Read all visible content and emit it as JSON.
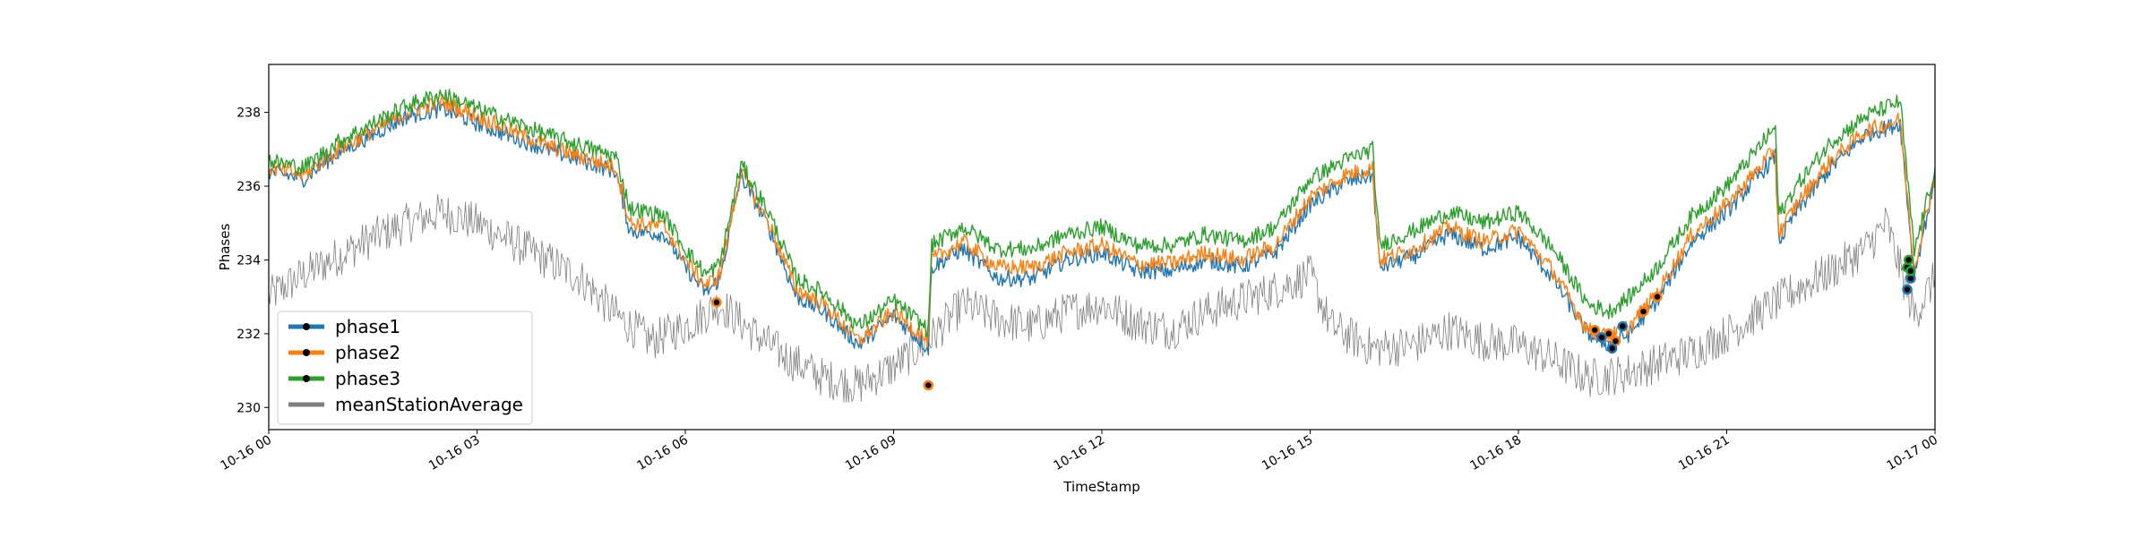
{
  "chart_data": {
    "type": "line",
    "title": "",
    "xlabel": "TimeStamp",
    "ylabel": "Phases",
    "x_range": [
      "10-16 00",
      "10-17 00"
    ],
    "ylim": [
      229.4,
      239.3
    ],
    "grid": false,
    "legend_position": "lower-left",
    "x_ticks": [
      "10-16 00",
      "10-16 03",
      "10-16 06",
      "10-16 09",
      "10-16 12",
      "10-16 15",
      "10-16 18",
      "10-16 21",
      "10-17 00"
    ],
    "y_ticks": [
      230,
      232,
      234,
      236,
      238
    ],
    "series": [
      {
        "name": "phase1",
        "color": "#1f77b4",
        "points": [
          [
            0,
            236.4
          ],
          [
            0.5,
            236.2
          ],
          [
            1,
            236.9
          ],
          [
            1.5,
            237.4
          ],
          [
            2,
            237.9
          ],
          [
            2.5,
            238.1
          ],
          [
            3,
            237.7
          ],
          [
            4,
            237.0
          ],
          [
            5,
            236.4
          ],
          [
            5.2,
            234.8
          ],
          [
            5.7,
            234.7
          ],
          [
            6,
            233.8
          ],
          [
            6.3,
            233.1
          ],
          [
            6.5,
            233.5
          ],
          [
            6.8,
            236.3
          ],
          [
            7.2,
            234.9
          ],
          [
            7.6,
            233.0
          ],
          [
            8,
            232.6
          ],
          [
            8.5,
            231.7
          ],
          [
            9,
            232.5
          ],
          [
            9.5,
            231.6
          ],
          [
            9.55,
            233.8
          ],
          [
            10,
            234.3
          ],
          [
            10.5,
            233.5
          ],
          [
            11,
            233.5
          ],
          [
            11.5,
            234.0
          ],
          [
            12,
            234.2
          ],
          [
            12.5,
            233.7
          ],
          [
            13,
            233.7
          ],
          [
            13.5,
            234.0
          ],
          [
            14,
            233.8
          ],
          [
            14.5,
            234.2
          ],
          [
            15,
            235.5
          ],
          [
            15.5,
            236.1
          ],
          [
            15.9,
            236.3
          ],
          [
            16,
            233.8
          ],
          [
            16.5,
            234.1
          ],
          [
            17,
            234.7
          ],
          [
            17.5,
            234.3
          ],
          [
            18,
            234.6
          ],
          [
            18.5,
            233.5
          ],
          [
            19,
            232.0
          ],
          [
            19.3,
            231.7
          ],
          [
            19.6,
            232.0
          ],
          [
            20,
            232.9
          ],
          [
            20.5,
            234.5
          ],
          [
            21,
            235.3
          ],
          [
            21.7,
            236.8
          ],
          [
            21.75,
            234.5
          ],
          [
            22,
            235.3
          ],
          [
            22.5,
            236.5
          ],
          [
            23,
            237.4
          ],
          [
            23.5,
            237.7
          ],
          [
            23.7,
            233.6
          ],
          [
            24,
            236.2
          ]
        ]
      },
      {
        "name": "phase2",
        "color": "#ff7f0e",
        "points": [
          [
            0,
            236.5
          ],
          [
            0.5,
            236.3
          ],
          [
            1,
            237.0
          ],
          [
            1.5,
            237.5
          ],
          [
            2,
            238.0
          ],
          [
            2.5,
            238.3
          ],
          [
            3,
            237.9
          ],
          [
            4,
            237.1
          ],
          [
            5,
            236.5
          ],
          [
            5.2,
            235.0
          ],
          [
            5.7,
            234.9
          ],
          [
            6,
            234.0
          ],
          [
            6.3,
            233.3
          ],
          [
            6.5,
            233.6
          ],
          [
            6.8,
            236.4
          ],
          [
            7.2,
            235.0
          ],
          [
            7.6,
            233.2
          ],
          [
            8,
            232.8
          ],
          [
            8.5,
            231.8
          ],
          [
            9,
            232.6
          ],
          [
            9.5,
            231.8
          ],
          [
            9.55,
            234.0
          ],
          [
            10,
            234.5
          ],
          [
            10.5,
            233.8
          ],
          [
            11,
            233.8
          ],
          [
            11.5,
            234.2
          ],
          [
            12,
            234.4
          ],
          [
            12.5,
            233.9
          ],
          [
            13,
            233.9
          ],
          [
            13.5,
            234.2
          ],
          [
            14,
            234.0
          ],
          [
            14.5,
            234.4
          ],
          [
            15,
            235.7
          ],
          [
            15.5,
            236.3
          ],
          [
            15.9,
            236.5
          ],
          [
            16,
            234.0
          ],
          [
            16.5,
            234.3
          ],
          [
            17,
            234.9
          ],
          [
            17.5,
            234.5
          ],
          [
            18,
            234.8
          ],
          [
            18.5,
            233.7
          ],
          [
            19,
            232.1
          ],
          [
            19.3,
            231.9
          ],
          [
            19.6,
            232.2
          ],
          [
            20,
            233.1
          ],
          [
            20.5,
            234.7
          ],
          [
            21,
            235.5
          ],
          [
            21.7,
            237.0
          ],
          [
            21.75,
            234.7
          ],
          [
            22,
            235.5
          ],
          [
            22.5,
            236.7
          ],
          [
            23,
            237.5
          ],
          [
            23.5,
            237.8
          ],
          [
            23.7,
            233.8
          ],
          [
            24,
            236.3
          ]
        ]
      },
      {
        "name": "phase3",
        "color": "#2ca02c",
        "points": [
          [
            0,
            236.7
          ],
          [
            0.5,
            236.5
          ],
          [
            1,
            237.2
          ],
          [
            1.5,
            237.7
          ],
          [
            2,
            238.2
          ],
          [
            2.5,
            238.5
          ],
          [
            3,
            238.1
          ],
          [
            4,
            237.4
          ],
          [
            5,
            236.8
          ],
          [
            5.2,
            235.4
          ],
          [
            5.7,
            235.2
          ],
          [
            6,
            234.3
          ],
          [
            6.3,
            233.6
          ],
          [
            6.5,
            233.9
          ],
          [
            6.8,
            236.6
          ],
          [
            7.2,
            235.3
          ],
          [
            7.6,
            233.5
          ],
          [
            8,
            233.1
          ],
          [
            8.5,
            232.2
          ],
          [
            9,
            232.9
          ],
          [
            9.5,
            232.1
          ],
          [
            9.55,
            234.4
          ],
          [
            10,
            234.9
          ],
          [
            10.5,
            234.3
          ],
          [
            11,
            234.3
          ],
          [
            11.5,
            234.7
          ],
          [
            12,
            234.9
          ],
          [
            12.5,
            234.4
          ],
          [
            13,
            234.4
          ],
          [
            13.5,
            234.7
          ],
          [
            14,
            234.5
          ],
          [
            14.5,
            234.9
          ],
          [
            15,
            236.2
          ],
          [
            15.5,
            236.7
          ],
          [
            15.9,
            237.0
          ],
          [
            16,
            234.4
          ],
          [
            16.5,
            234.8
          ],
          [
            17,
            235.3
          ],
          [
            17.5,
            235.0
          ],
          [
            18,
            235.3
          ],
          [
            18.5,
            234.3
          ],
          [
            19,
            232.8
          ],
          [
            19.3,
            232.6
          ],
          [
            19.6,
            233.0
          ],
          [
            20,
            233.8
          ],
          [
            20.5,
            235.2
          ],
          [
            21,
            236.0
          ],
          [
            21.7,
            237.6
          ],
          [
            21.75,
            235.2
          ],
          [
            22,
            236.0
          ],
          [
            22.5,
            237.2
          ],
          [
            23,
            237.9
          ],
          [
            23.5,
            238.3
          ],
          [
            23.7,
            234.2
          ],
          [
            24,
            236.5
          ]
        ]
      },
      {
        "name": "meanStationAverage",
        "color": "#7f7f7f",
        "points": [
          [
            0,
            233.0
          ],
          [
            0.5,
            233.6
          ],
          [
            1,
            234.1
          ],
          [
            1.5,
            234.6
          ],
          [
            2,
            235.0
          ],
          [
            2.5,
            235.3
          ],
          [
            3,
            235.0
          ],
          [
            4,
            234.0
          ],
          [
            4.5,
            233.5
          ],
          [
            5,
            232.5
          ],
          [
            5.5,
            231.8
          ],
          [
            6,
            232.2
          ],
          [
            6.5,
            232.8
          ],
          [
            7,
            232.0
          ],
          [
            7.5,
            231.3
          ],
          [
            8,
            230.8
          ],
          [
            8.5,
            230.6
          ],
          [
            9,
            231.1
          ],
          [
            9.5,
            231.8
          ],
          [
            10,
            232.8
          ],
          [
            10.5,
            232.4
          ],
          [
            11,
            232.2
          ],
          [
            11.5,
            232.6
          ],
          [
            12,
            232.8
          ],
          [
            12.5,
            232.3
          ],
          [
            13,
            232.1
          ],
          [
            13.5,
            232.6
          ],
          [
            14,
            232.9
          ],
          [
            14.5,
            233.2
          ],
          [
            15,
            233.6
          ],
          [
            15.3,
            232.2
          ],
          [
            15.9,
            231.6
          ],
          [
            16.5,
            231.7
          ],
          [
            17,
            232.1
          ],
          [
            17.5,
            231.8
          ],
          [
            18,
            231.7
          ],
          [
            18.5,
            231.3
          ],
          [
            19,
            230.8
          ],
          [
            19.5,
            230.9
          ],
          [
            20,
            231.2
          ],
          [
            20.5,
            231.5
          ],
          [
            21,
            232.0
          ],
          [
            21.5,
            232.6
          ],
          [
            22,
            233.2
          ],
          [
            22.5,
            233.7
          ],
          [
            23,
            234.3
          ],
          [
            23.3,
            235.0
          ],
          [
            23.7,
            232.5
          ],
          [
            24,
            233.5
          ]
        ]
      }
    ],
    "markers": [
      {
        "series": "phase2",
        "points": [
          [
            6.45,
            232.85
          ],
          [
            9.5,
            230.6
          ],
          [
            20.0,
            233.0
          ],
          [
            19.8,
            232.6
          ],
          [
            19.1,
            232.1
          ],
          [
            19.3,
            232.0
          ],
          [
            19.4,
            231.8
          ]
        ]
      },
      {
        "series": "phase1",
        "points": [
          [
            19.2,
            231.9
          ],
          [
            19.35,
            231.6
          ],
          [
            19.5,
            232.2
          ],
          [
            23.6,
            233.2
          ],
          [
            23.65,
            233.5
          ]
        ]
      },
      {
        "series": "phase3",
        "points": [
          [
            23.6,
            233.8
          ],
          [
            23.62,
            234.0
          ],
          [
            23.65,
            233.7
          ]
        ]
      }
    ]
  }
}
